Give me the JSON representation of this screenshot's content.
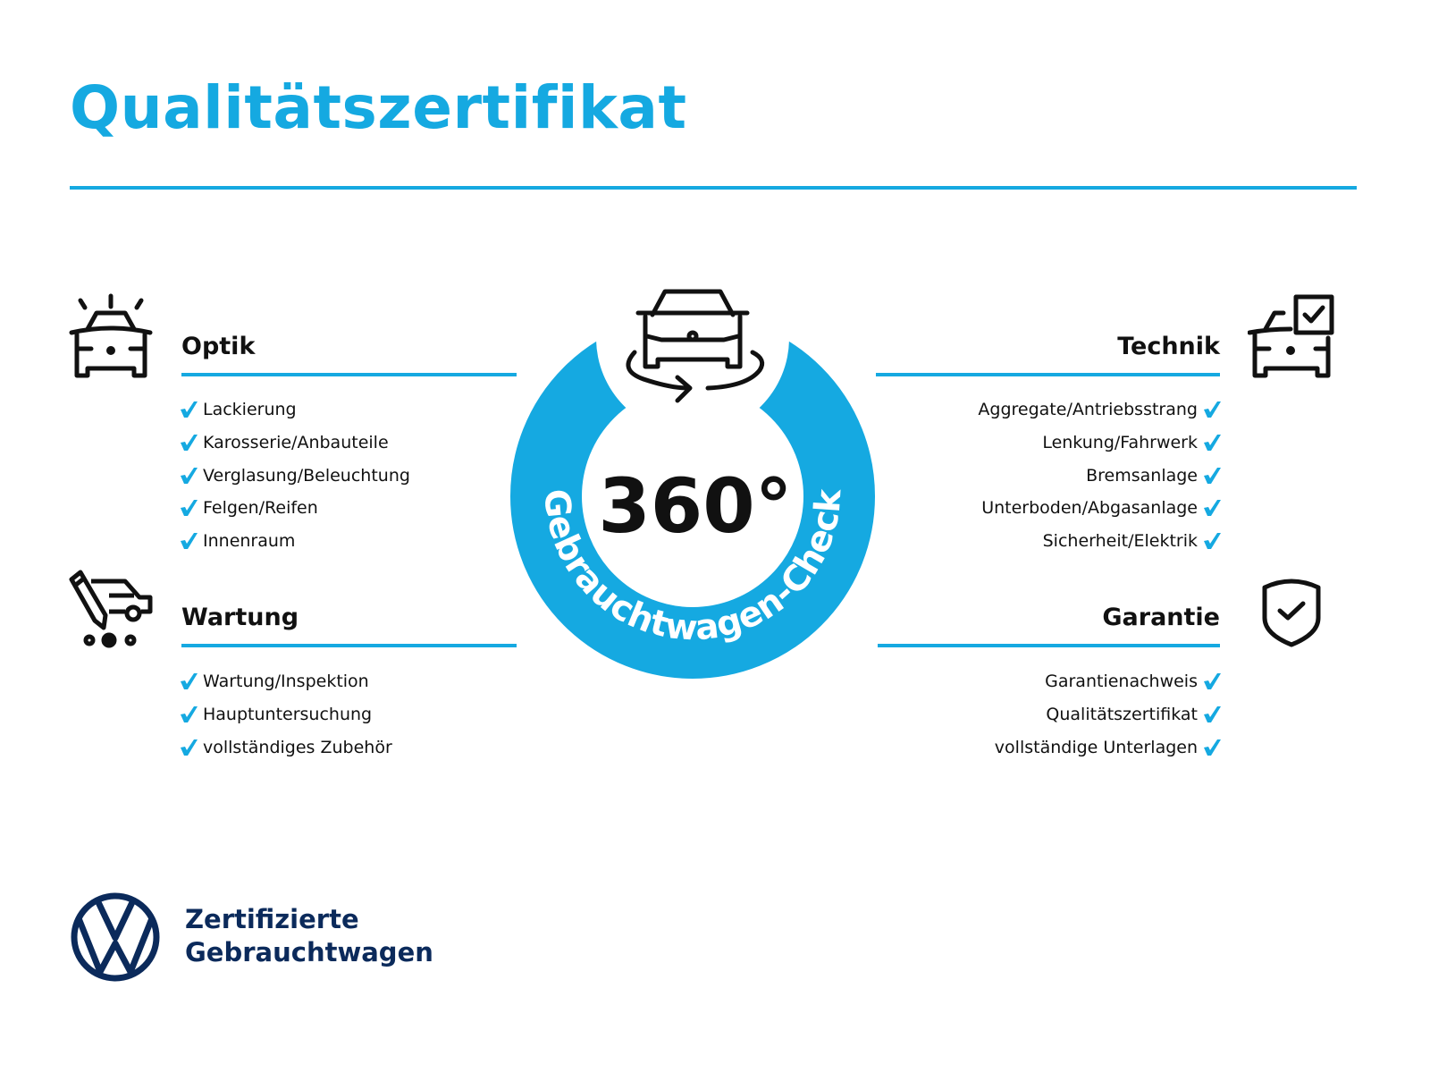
{
  "title": "Qualitätszertifikat",
  "colors": {
    "accent": "#15a9e1",
    "brand": "#0b2a5b",
    "text": "#111111"
  },
  "seal": {
    "number": "360°",
    "arc_text": "Gebrauchtwagen-Check",
    "icon": "car-rotate-icon"
  },
  "sections": {
    "optik": {
      "heading": "Optik",
      "icon": "car-lights-icon",
      "items": [
        "Lackierung",
        "Karosserie/Anbauteile",
        "Verglasung/Beleuchtung",
        "Felgen/Reifen",
        "Innenraum"
      ]
    },
    "wartung": {
      "heading": "Wartung",
      "icon": "van-pencil-icon",
      "items": [
        "Wartung/Inspektion",
        "Hauptuntersuchung",
        "vollständiges Zubehör"
      ]
    },
    "technik": {
      "heading": "Technik",
      "icon": "car-checkbox-icon",
      "items": [
        "Aggregate/Antriebsstrang",
        "Lenkung/Fahrwerk",
        "Bremsanlage",
        "Unterboden/Abgasanlage",
        "Sicherheit/Elektrik"
      ]
    },
    "garantie": {
      "heading": "Garantie",
      "icon": "shield-check-icon",
      "items": [
        "Garantienachweis",
        "Qualitätszertifikat",
        "vollständige Unterlagen"
      ]
    }
  },
  "footer": {
    "line1": "Zertifizierte",
    "line2": "Gebrauchtwagen",
    "logo": "vw-logo"
  }
}
